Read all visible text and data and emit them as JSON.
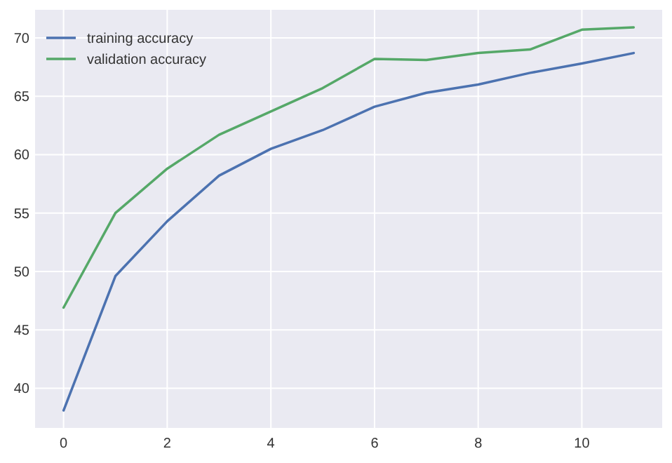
{
  "chart_data": {
    "type": "line",
    "x": [
      0,
      1,
      2,
      3,
      4,
      5,
      6,
      7,
      8,
      9,
      10,
      11
    ],
    "series": [
      {
        "name": "training accuracy",
        "color": "#4c72b0",
        "values": [
          38.1,
          49.6,
          54.3,
          58.2,
          60.5,
          62.1,
          64.1,
          65.3,
          66.0,
          67.0,
          67.8,
          68.7
        ]
      },
      {
        "name": "validation accuracy",
        "color": "#55a868",
        "values": [
          46.9,
          55.0,
          58.8,
          61.7,
          63.7,
          65.7,
          68.2,
          68.1,
          68.7,
          69.0,
          70.7,
          70.9
        ]
      }
    ],
    "xlim": [
      -0.55,
      11.55
    ],
    "xticks": [
      0,
      2,
      4,
      6,
      8,
      10
    ],
    "ylim": [
      36.6,
      72.4
    ],
    "yticks": [
      40,
      45,
      50,
      55,
      60,
      65,
      70
    ],
    "grid": true,
    "legend": "top left",
    "marker": "none",
    "line_style": "solid"
  }
}
